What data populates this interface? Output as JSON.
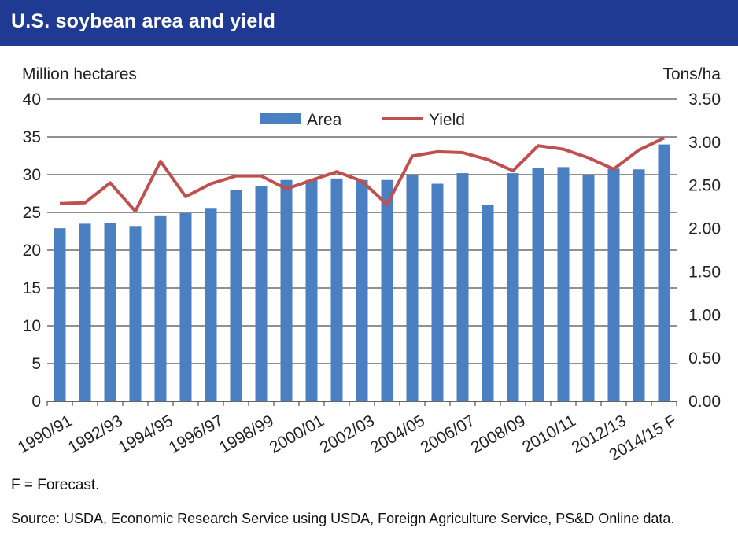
{
  "header": {
    "title": "U.S. soybean area and yield"
  },
  "chart_data": {
    "type": "bar",
    "title": "U.S. soybean area and yield",
    "ylabel_left": "Million hectares",
    "ylabel_right": "Tons/ha",
    "ylim_left": [
      0,
      40
    ],
    "ylim_right": [
      0,
      3.5
    ],
    "yticks_left": [
      "0",
      "5",
      "10",
      "15",
      "20",
      "25",
      "30",
      "35",
      "40"
    ],
    "yticks_right": [
      "0.00",
      "0.50",
      "1.00",
      "1.50",
      "2.00",
      "2.50",
      "3.00",
      "3.50"
    ],
    "grid": true,
    "legend_placement": "top-center",
    "categories": [
      "1990/91",
      "1991/92",
      "1992/93",
      "1993/94",
      "1994/95",
      "1995/96",
      "1996/97",
      "1997/98",
      "1998/99",
      "1999/00",
      "2000/01",
      "2001/02",
      "2002/03",
      "2003/04",
      "2004/05",
      "2005/06",
      "2006/07",
      "2007/08",
      "2008/09",
      "2009/10",
      "2010/11",
      "2011/12",
      "2012/13",
      "2013/14",
      "2014/15 F"
    ],
    "xtick_labels": [
      "1990/91",
      "",
      "1992/93",
      "",
      "1994/95",
      "",
      "1996/97",
      "",
      "1998/99",
      "",
      "2000/01",
      "",
      "2002/03",
      "",
      "2004/05",
      "",
      "2006/07",
      "",
      "2008/09",
      "",
      "2010/11",
      "",
      "2012/13",
      "",
      "2014/15 F"
    ],
    "series": [
      {
        "name": "Area",
        "type": "bar",
        "axis": "left",
        "color": "#4a7fc1",
        "values": [
          22.9,
          23.5,
          23.6,
          23.2,
          24.6,
          24.9,
          25.6,
          28.0,
          28.5,
          29.3,
          29.3,
          29.5,
          29.3,
          29.3,
          30.0,
          28.8,
          30.2,
          26.0,
          30.2,
          30.9,
          31.0,
          29.9,
          30.8,
          30.7,
          34.0
        ]
      },
      {
        "name": "Yield",
        "type": "line",
        "axis": "right",
        "color": "#c0504d",
        "values": [
          2.29,
          2.3,
          2.53,
          2.2,
          2.78,
          2.37,
          2.52,
          2.61,
          2.61,
          2.46,
          2.56,
          2.66,
          2.55,
          2.28,
          2.84,
          2.89,
          2.88,
          2.8,
          2.67,
          2.96,
          2.92,
          2.82,
          2.69,
          2.91,
          3.05
        ]
      }
    ]
  },
  "footnote": "F = Forecast.",
  "source": "Source: USDA, Economic Research Service using USDA, Foreign Agriculture Service, PS&D Online data."
}
